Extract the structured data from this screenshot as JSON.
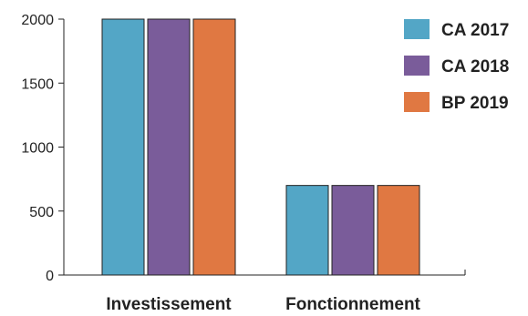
{
  "chart_data": {
    "type": "bar",
    "categories": [
      "Investissement",
      "Fonctionnement"
    ],
    "series": [
      {
        "name": "CA 2017",
        "color": "#53a6c6",
        "values": [
          2000,
          700
        ]
      },
      {
        "name": "CA 2018",
        "color": "#7a5c9a",
        "values": [
          2000,
          700
        ]
      },
      {
        "name": "BP 2019",
        "color": "#e07842",
        "values": [
          2000,
          700
        ]
      }
    ],
    "yticks": [
      "0",
      "500",
      "1000",
      "1500",
      "2000"
    ],
    "ylim": [
      0,
      2000
    ],
    "grid": false,
    "legend_position": "top-right"
  }
}
